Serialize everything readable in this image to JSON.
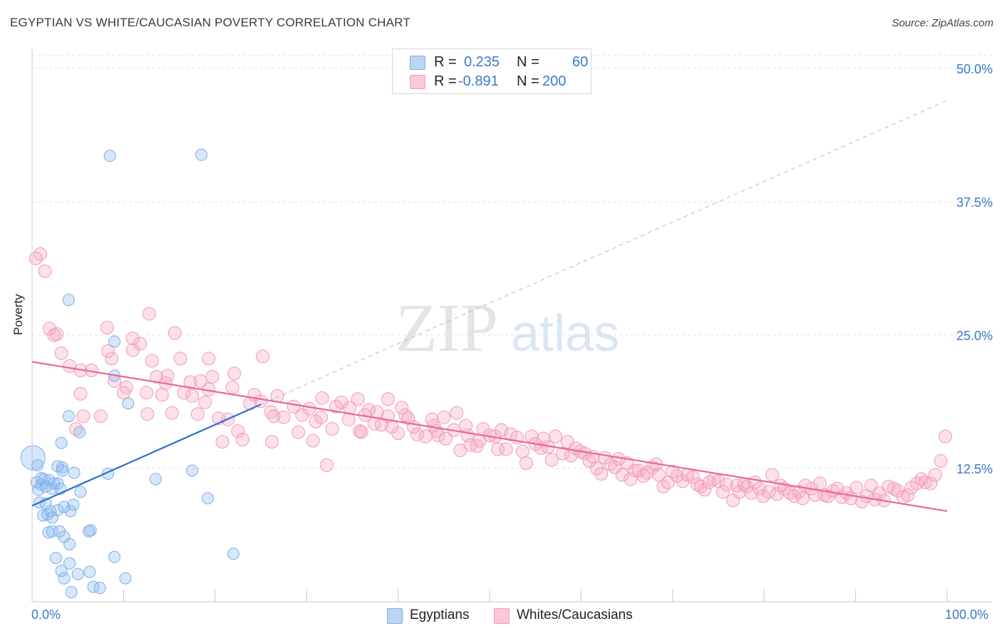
{
  "title": "EGYPTIAN VS WHITE/CAUCASIAN POVERTY CORRELATION CHART",
  "source": "Source: ZipAtlas.com",
  "watermark": {
    "zip": "ZIP",
    "atlas": "atlas"
  },
  "colors": {
    "blue": "#7baee8",
    "blue_line": "#2b6fd1",
    "pink": "#f19ab8",
    "pink_line": "#e8689a",
    "axis_text": "#3d78c8"
  },
  "legend": {
    "rows": [
      {
        "r_label": "R =",
        "r_value": "0.235",
        "n_label": "N =",
        "n_value": "60"
      },
      {
        "r_label": "R =",
        "r_value": "-0.891",
        "n_label": "N =",
        "n_value": "200"
      }
    ]
  },
  "bottom_legend": {
    "egyptians": "Egyptians",
    "whites": "Whites/Caucasians"
  },
  "chart_data": {
    "type": "scatter",
    "title": "EGYPTIAN VS WHITE/CAUCASIAN POVERTY CORRELATION CHART",
    "xlabel": "",
    "ylabel": "Poverty",
    "xlim": [
      0,
      100
    ],
    "ylim": [
      0,
      50
    ],
    "x_ticks_labels": [
      "0.0%",
      "100.0%"
    ],
    "y_ticks": [
      12.5,
      25.0,
      37.5,
      50.0
    ],
    "y_ticks_labels": [
      "12.5%",
      "25.0%",
      "37.5%",
      "50.0%"
    ],
    "grid": true,
    "legend_position": "top-center",
    "series": [
      {
        "name": "Egyptians",
        "r": 0.235,
        "n": 60,
        "trend": {
          "x": [
            0,
            25
          ],
          "y": [
            9.0,
            18.5
          ]
        },
        "trend_extension": {
          "x": [
            25,
            100
          ],
          "y": [
            18.5,
            47.0
          ]
        },
        "points": [
          [
            0.1,
            13.5
          ],
          [
            0.6,
            12.8
          ],
          [
            0.5,
            11.2
          ],
          [
            0.7,
            10.5
          ],
          [
            1.0,
            11.0
          ],
          [
            1.3,
            11.5
          ],
          [
            1.9,
            11.4
          ],
          [
            1.5,
            10.8
          ],
          [
            2.4,
            11.1
          ],
          [
            2.2,
            10.6
          ],
          [
            2.8,
            11.1
          ],
          [
            3.1,
            10.6
          ],
          [
            0.8,
            9.3
          ],
          [
            1.5,
            9.2
          ],
          [
            1.2,
            8.1
          ],
          [
            2.0,
            8.5
          ],
          [
            1.7,
            8.2
          ],
          [
            2.8,
            8.6
          ],
          [
            2.2,
            7.9
          ],
          [
            3.5,
            8.9
          ],
          [
            4.2,
            8.5
          ],
          [
            4.5,
            9.1
          ],
          [
            1.8,
            6.5
          ],
          [
            2.2,
            6.6
          ],
          [
            3.0,
            6.6
          ],
          [
            3.5,
            6.1
          ],
          [
            4.1,
            5.4
          ],
          [
            6.4,
            6.7
          ],
          [
            6.2,
            6.6
          ],
          [
            2.6,
            4.1
          ],
          [
            4.1,
            3.6
          ],
          [
            5.0,
            2.6
          ],
          [
            3.5,
            2.2
          ],
          [
            6.3,
            2.8
          ],
          [
            6.7,
            1.4
          ],
          [
            7.4,
            1.3
          ],
          [
            3.2,
            2.9
          ],
          [
            4.3,
            0.9
          ],
          [
            9.0,
            4.2
          ],
          [
            10.2,
            2.2
          ],
          [
            3.2,
            14.9
          ],
          [
            3.3,
            12.6
          ],
          [
            3.3,
            12.3
          ],
          [
            5.3,
            10.3
          ],
          [
            4.0,
            17.4
          ],
          [
            5.2,
            15.9
          ],
          [
            8.3,
            12.0
          ],
          [
            9.0,
            24.4
          ],
          [
            9.0,
            21.2
          ],
          [
            10.5,
            18.6
          ],
          [
            13.5,
            11.5
          ],
          [
            17.5,
            12.3
          ],
          [
            19.2,
            9.7
          ],
          [
            22.0,
            4.5
          ],
          [
            4.0,
            28.3
          ],
          [
            8.5,
            41.8
          ],
          [
            18.5,
            41.9
          ],
          [
            2.8,
            12.7
          ],
          [
            1.0,
            11.6
          ],
          [
            4.6,
            12.1
          ]
        ]
      },
      {
        "name": "Whites/Caucasians",
        "r": -0.891,
        "n": 200,
        "trend": {
          "x": [
            0,
            100
          ],
          "y": [
            22.5,
            8.5
          ]
        },
        "points": [
          [
            0.4,
            32.2
          ],
          [
            0.9,
            32.6
          ],
          [
            1.4,
            31.0
          ],
          [
            1.9,
            25.6
          ],
          [
            2.4,
            25.0
          ],
          [
            2.7,
            25.1
          ],
          [
            3.2,
            23.3
          ],
          [
            4.1,
            22.1
          ],
          [
            5.3,
            21.7
          ],
          [
            5.6,
            17.4
          ],
          [
            4.8,
            16.2
          ],
          [
            5.3,
            19.5
          ],
          [
            6.5,
            21.7
          ],
          [
            7.5,
            17.4
          ],
          [
            8.2,
            25.7
          ],
          [
            9.0,
            20.7
          ],
          [
            10.3,
            20.1
          ],
          [
            8.7,
            22.8
          ],
          [
            10.0,
            19.6
          ],
          [
            11.0,
            23.6
          ],
          [
            11.8,
            24.2
          ],
          [
            12.5,
            19.6
          ],
          [
            12.6,
            17.6
          ],
          [
            12.8,
            27.0
          ],
          [
            13.1,
            22.6
          ],
          [
            13.6,
            21.1
          ],
          [
            14.2,
            19.4
          ],
          [
            14.6,
            20.5
          ],
          [
            15.3,
            17.7
          ],
          [
            14.8,
            21.2
          ],
          [
            16.2,
            22.8
          ],
          [
            16.6,
            19.6
          ],
          [
            17.3,
            20.6
          ],
          [
            17.5,
            19.3
          ],
          [
            18.1,
            17.6
          ],
          [
            18.4,
            20.7
          ],
          [
            18.9,
            18.7
          ],
          [
            19.3,
            19.9
          ],
          [
            19.7,
            21.1
          ],
          [
            20.4,
            17.2
          ],
          [
            20.8,
            15.0
          ],
          [
            21.4,
            17.1
          ],
          [
            21.9,
            20.1
          ],
          [
            22.5,
            16.0
          ],
          [
            23.0,
            15.2
          ],
          [
            23.8,
            18.6
          ],
          [
            24.3,
            19.4
          ],
          [
            25.0,
            18.8
          ],
          [
            25.2,
            23.0
          ],
          [
            26.1,
            17.8
          ],
          [
            26.2,
            15.0
          ],
          [
            26.4,
            17.4
          ],
          [
            26.8,
            19.3
          ],
          [
            27.5,
            17.3
          ],
          [
            28.6,
            18.3
          ],
          [
            29.1,
            15.9
          ],
          [
            29.5,
            17.5
          ],
          [
            30.3,
            18.1
          ],
          [
            30.7,
            15.1
          ],
          [
            31.0,
            16.9
          ],
          [
            31.6,
            17.3
          ],
          [
            31.7,
            19.1
          ],
          [
            32.2,
            12.8
          ],
          [
            32.8,
            16.2
          ],
          [
            33.2,
            18.3
          ],
          [
            33.8,
            18.7
          ],
          [
            34.6,
            17.1
          ],
          [
            34.7,
            18.2
          ],
          [
            35.6,
            19.0
          ],
          [
            35.8,
            16.0
          ],
          [
            36.0,
            15.9
          ],
          [
            36.4,
            17.5
          ],
          [
            36.8,
            18.0
          ],
          [
            37.4,
            16.7
          ],
          [
            37.7,
            17.8
          ],
          [
            38.2,
            16.6
          ],
          [
            38.9,
            17.4
          ],
          [
            38.9,
            19.0
          ],
          [
            39.3,
            16.4
          ],
          [
            40.0,
            15.8
          ],
          [
            40.4,
            18.2
          ],
          [
            40.8,
            17.5
          ],
          [
            41.1,
            17.2
          ],
          [
            41.7,
            16.4
          ],
          [
            42.1,
            15.7
          ],
          [
            43.0,
            15.5
          ],
          [
            43.7,
            17.1
          ],
          [
            43.9,
            16.5
          ],
          [
            44.2,
            16.0
          ],
          [
            44.4,
            15.6
          ],
          [
            45.0,
            17.3
          ],
          [
            45.2,
            15.3
          ],
          [
            46.1,
            16.1
          ],
          [
            46.4,
            17.7
          ],
          [
            46.8,
            14.2
          ],
          [
            47.4,
            16.5
          ],
          [
            47.6,
            15.6
          ],
          [
            47.9,
            14.7
          ],
          [
            48.6,
            14.6
          ],
          [
            48.9,
            15.1
          ],
          [
            49.3,
            16.2
          ],
          [
            50.0,
            15.6
          ],
          [
            50.6,
            15.5
          ],
          [
            50.9,
            14.3
          ],
          [
            51.3,
            16.1
          ],
          [
            51.8,
            14.3
          ],
          [
            52.3,
            15.7
          ],
          [
            53.0,
            15.4
          ],
          [
            53.6,
            14.1
          ],
          [
            54.0,
            13.0
          ],
          [
            54.6,
            15.5
          ],
          [
            55.0,
            14.8
          ],
          [
            55.6,
            14.4
          ],
          [
            55.9,
            15.3
          ],
          [
            56.4,
            14.5
          ],
          [
            56.8,
            13.3
          ],
          [
            57.2,
            15.5
          ],
          [
            58.0,
            13.9
          ],
          [
            58.5,
            15.0
          ],
          [
            58.9,
            13.7
          ],
          [
            59.4,
            14.4
          ],
          [
            59.9,
            14.1
          ],
          [
            60.4,
            13.9
          ],
          [
            60.9,
            13.2
          ],
          [
            61.3,
            13.6
          ],
          [
            61.7,
            12.5
          ],
          [
            62.2,
            12.0
          ],
          [
            62.6,
            13.5
          ],
          [
            63.2,
            12.9
          ],
          [
            63.7,
            12.6
          ],
          [
            64.1,
            13.4
          ],
          [
            64.5,
            11.9
          ],
          [
            65.0,
            13.0
          ],
          [
            65.4,
            11.5
          ],
          [
            65.9,
            12.3
          ],
          [
            66.3,
            12.3
          ],
          [
            66.8,
            11.8
          ],
          [
            67.2,
            12.1
          ],
          [
            67.8,
            12.6
          ],
          [
            68.2,
            12.9
          ],
          [
            68.5,
            11.9
          ],
          [
            69.0,
            10.8
          ],
          [
            69.5,
            11.2
          ],
          [
            70.0,
            12.2
          ],
          [
            70.5,
            11.8
          ],
          [
            71.1,
            11.3
          ],
          [
            71.6,
            11.9
          ],
          [
            72.2,
            11.7
          ],
          [
            72.7,
            11.0
          ],
          [
            73.1,
            10.8
          ],
          [
            73.5,
            10.5
          ],
          [
            74.0,
            11.2
          ],
          [
            74.5,
            11.5
          ],
          [
            75.0,
            11.3
          ],
          [
            75.5,
            10.3
          ],
          [
            75.9,
            11.0
          ],
          [
            76.6,
            9.5
          ],
          [
            77.0,
            10.9
          ],
          [
            77.3,
            10.3
          ],
          [
            77.8,
            11.0
          ],
          [
            78.1,
            10.8
          ],
          [
            78.6,
            10.2
          ],
          [
            79.0,
            11.2
          ],
          [
            79.5,
            10.6
          ],
          [
            79.9,
            9.9
          ],
          [
            80.5,
            10.3
          ],
          [
            80.9,
            11.9
          ],
          [
            81.4,
            10.1
          ],
          [
            81.8,
            10.9
          ],
          [
            82.2,
            10.6
          ],
          [
            82.8,
            10.2
          ],
          [
            83.3,
            9.9
          ],
          [
            83.8,
            10.3
          ],
          [
            84.2,
            9.7
          ],
          [
            84.5,
            10.9
          ],
          [
            85.2,
            10.6
          ],
          [
            85.6,
            10.0
          ],
          [
            86.1,
            11.1
          ],
          [
            86.6,
            10.0
          ],
          [
            87.0,
            9.9
          ],
          [
            87.5,
            10.4
          ],
          [
            88.0,
            10.6
          ],
          [
            88.5,
            9.8
          ],
          [
            89.0,
            10.2
          ],
          [
            89.5,
            9.7
          ],
          [
            90.1,
            10.7
          ],
          [
            90.7,
            9.4
          ],
          [
            91.2,
            9.9
          ],
          [
            91.7,
            10.9
          ],
          [
            92.1,
            9.6
          ],
          [
            92.6,
            10.2
          ],
          [
            93.1,
            9.5
          ],
          [
            93.6,
            10.8
          ],
          [
            94.2,
            10.6
          ],
          [
            94.6,
            10.4
          ],
          [
            95.2,
            9.8
          ],
          [
            95.7,
            10.0
          ],
          [
            96.1,
            10.7
          ],
          [
            96.7,
            11.1
          ],
          [
            97.2,
            11.5
          ],
          [
            97.6,
            11.2
          ],
          [
            98.2,
            11.1
          ],
          [
            98.7,
            11.9
          ],
          [
            99.3,
            13.2
          ],
          [
            99.8,
            15.5
          ],
          [
            15.6,
            25.2
          ],
          [
            11.0,
            24.7
          ],
          [
            8.3,
            23.5
          ],
          [
            19.3,
            22.8
          ],
          [
            22.1,
            21.4
          ]
        ]
      }
    ]
  }
}
